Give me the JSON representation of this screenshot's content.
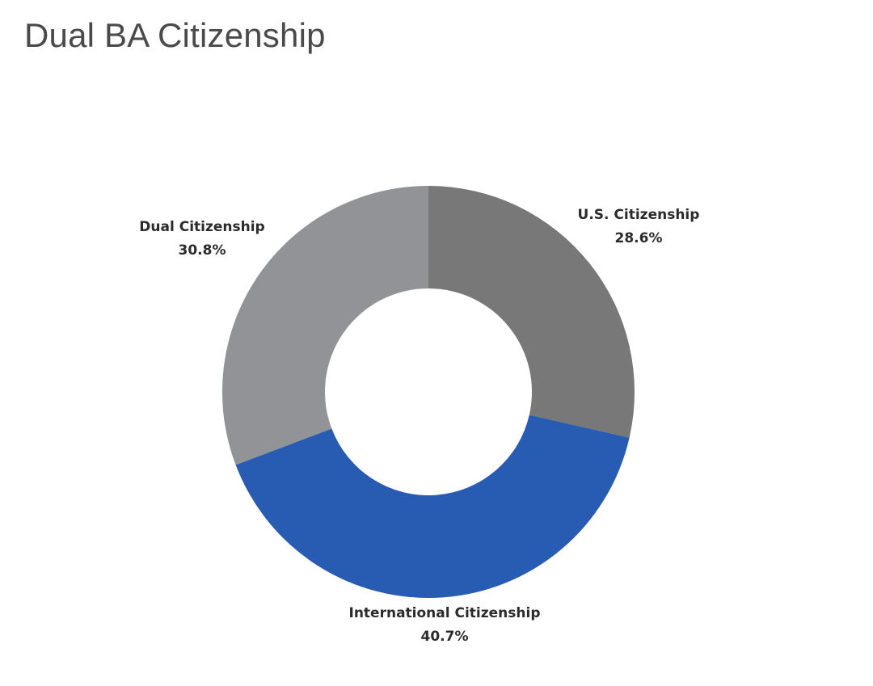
{
  "header": {
    "title": "Dual BA Citizenship"
  },
  "chart_data": {
    "type": "pie",
    "donut": true,
    "title": "Dual BA Citizenship",
    "legend": "none",
    "slices": [
      {
        "label": "U.S. Citizenship",
        "value": 28.6,
        "display": "28.6%",
        "color": "#777877"
      },
      {
        "label": "International Citizenship",
        "value": 40.7,
        "display": "40.7%",
        "color": "#285cb2"
      },
      {
        "label": "Dual Citizenship",
        "value": 30.8,
        "display": "30.8%",
        "color": "#929396"
      }
    ]
  }
}
